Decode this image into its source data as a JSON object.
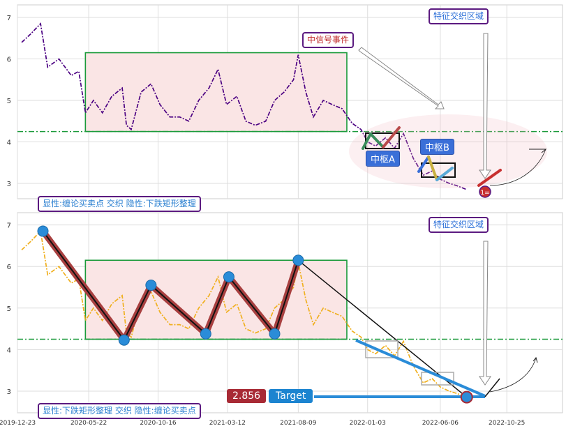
{
  "top_panel": {
    "annotation_signal": "中信号事件",
    "annotation_region": "特征交织区域",
    "pivot_a": "中枢A",
    "pivot_b": "中枢B",
    "end_marker": "1=",
    "caption": "显性:缠论买卖点 交织 隐性:下跌矩形整理"
  },
  "bottom_panel": {
    "annotation_region": "特征交织区域",
    "price_badge": "2.856",
    "target_badge": "Target",
    "caption": "显性:下跌矩形整理 交织 隐性:缠论买卖点"
  },
  "colors": {
    "top_line": "#4b0082",
    "bottom_line": "#f0b020",
    "rectangle_border": "#1a9a3a",
    "rectangle_fill": "#fae5e5",
    "support_line": "#1a9a3a",
    "stroke_dark_red": "#a84040",
    "pivot_dot": "#2a8cd8",
    "target_arrow": "#2a8cd8"
  },
  "chart_data": [
    {
      "type": "line",
      "panel": "top",
      "series_style": "dash-dot",
      "x_ticks": [
        "2019-12-23",
        "2020-05-22",
        "2020-10-16",
        "2021-03-12",
        "2021-08-09",
        "2022-01-03",
        "2022-06-06",
        "2022-10-25"
      ],
      "y_ticks": [
        "3",
        "4",
        "5",
        "6",
        "7"
      ],
      "ylim": [
        2.6,
        7.3
      ],
      "x": [
        "2020-01-01",
        "2020-01-20",
        "2020-02-10",
        "2020-02-25",
        "2020-03-20",
        "2020-04-15",
        "2020-05-01",
        "2020-05-15",
        "2020-06-01",
        "2020-06-20",
        "2020-07-10",
        "2020-08-01",
        "2020-08-10",
        "2020-08-20",
        "2020-09-10",
        "2020-10-01",
        "2020-10-20",
        "2020-11-10",
        "2020-12-01",
        "2020-12-20",
        "2021-01-10",
        "2021-02-01",
        "2021-02-20",
        "2021-03-10",
        "2021-04-01",
        "2021-04-20",
        "2021-05-10",
        "2021-06-01",
        "2021-06-20",
        "2021-07-10",
        "2021-07-30",
        "2021-08-09",
        "2021-08-25",
        "2021-09-10",
        "2021-10-01",
        "2021-10-20",
        "2021-11-10",
        "2021-12-01",
        "2021-12-20",
        "2022-01-03",
        "2022-01-20",
        "2022-02-10",
        "2022-03-01",
        "2022-03-20",
        "2022-04-10",
        "2022-05-01",
        "2022-05-20",
        "2022-06-06",
        "2022-06-25",
        "2022-07-10",
        "2022-08-01"
      ],
      "values": [
        6.4,
        6.6,
        6.85,
        5.8,
        6.0,
        5.6,
        5.7,
        4.7,
        5.0,
        4.7,
        5.1,
        5.3,
        4.4,
        4.3,
        5.2,
        5.4,
        4.9,
        4.6,
        4.6,
        4.5,
        5.0,
        5.3,
        5.75,
        4.9,
        5.1,
        4.5,
        4.4,
        4.5,
        5.0,
        5.2,
        5.5,
        6.1,
        5.2,
        4.6,
        5.0,
        4.9,
        4.8,
        4.45,
        4.3,
        4.0,
        3.9,
        4.1,
        3.85,
        4.2,
        3.6,
        3.2,
        3.3,
        3.1,
        3.0,
        2.95,
        2.85
      ]
    },
    {
      "type": "line",
      "panel": "bottom",
      "series_style": "dash-dot",
      "x_ticks": [
        "2019-12-23",
        "2020-05-22",
        "2020-10-16",
        "2021-03-12",
        "2021-08-09",
        "2022-01-03",
        "2022-06-06",
        "2022-10-25"
      ],
      "y_ticks": [
        "3",
        "4",
        "5",
        "6",
        "7"
      ],
      "ylim": [
        2.6,
        7.3
      ],
      "x": [
        "2020-01-01",
        "2020-01-20",
        "2020-02-10",
        "2020-02-25",
        "2020-03-20",
        "2020-04-15",
        "2020-05-01",
        "2020-05-15",
        "2020-06-01",
        "2020-06-20",
        "2020-07-10",
        "2020-08-01",
        "2020-08-10",
        "2020-08-20",
        "2020-09-10",
        "2020-10-01",
        "2020-10-20",
        "2020-11-10",
        "2020-12-01",
        "2020-12-20",
        "2021-01-10",
        "2021-02-01",
        "2021-02-20",
        "2021-03-10",
        "2021-04-01",
        "2021-04-20",
        "2021-05-10",
        "2021-06-01",
        "2021-06-20",
        "2021-07-10",
        "2021-07-30",
        "2021-08-09",
        "2021-08-25",
        "2021-09-10",
        "2021-10-01",
        "2021-10-20",
        "2021-11-10",
        "2021-12-01",
        "2021-12-20",
        "2022-01-03",
        "2022-01-20",
        "2022-02-10",
        "2022-03-01",
        "2022-03-20",
        "2022-04-10",
        "2022-05-01",
        "2022-05-20",
        "2022-06-06",
        "2022-06-25",
        "2022-07-10",
        "2022-08-01"
      ],
      "values": [
        6.4,
        6.6,
        6.85,
        5.8,
        6.0,
        5.6,
        5.7,
        4.7,
        5.0,
        4.7,
        5.1,
        5.3,
        4.4,
        4.3,
        5.2,
        5.4,
        4.9,
        4.6,
        4.6,
        4.5,
        5.0,
        5.3,
        5.75,
        4.9,
        5.1,
        4.5,
        4.4,
        4.5,
        5.0,
        5.2,
        5.5,
        6.1,
        5.2,
        4.6,
        5.0,
        4.9,
        4.8,
        4.45,
        4.3,
        4.0,
        3.9,
        4.1,
        3.85,
        4.2,
        3.6,
        3.2,
        3.3,
        3.1,
        3.0,
        2.95,
        2.85
      ],
      "pivot_points": [
        {
          "x": "2020-02-15",
          "y": 6.85
        },
        {
          "x": "2020-08-05",
          "y": 4.23
        },
        {
          "x": "2020-10-01",
          "y": 5.55
        },
        {
          "x": "2021-01-25",
          "y": 4.38
        },
        {
          "x": "2021-03-15",
          "y": 5.75
        },
        {
          "x": "2021-06-20",
          "y": 4.38
        },
        {
          "x": "2021-08-09",
          "y": 6.15
        },
        {
          "x": "2022-08-01",
          "y": 2.856
        }
      ],
      "price_label": 2.856
    }
  ]
}
